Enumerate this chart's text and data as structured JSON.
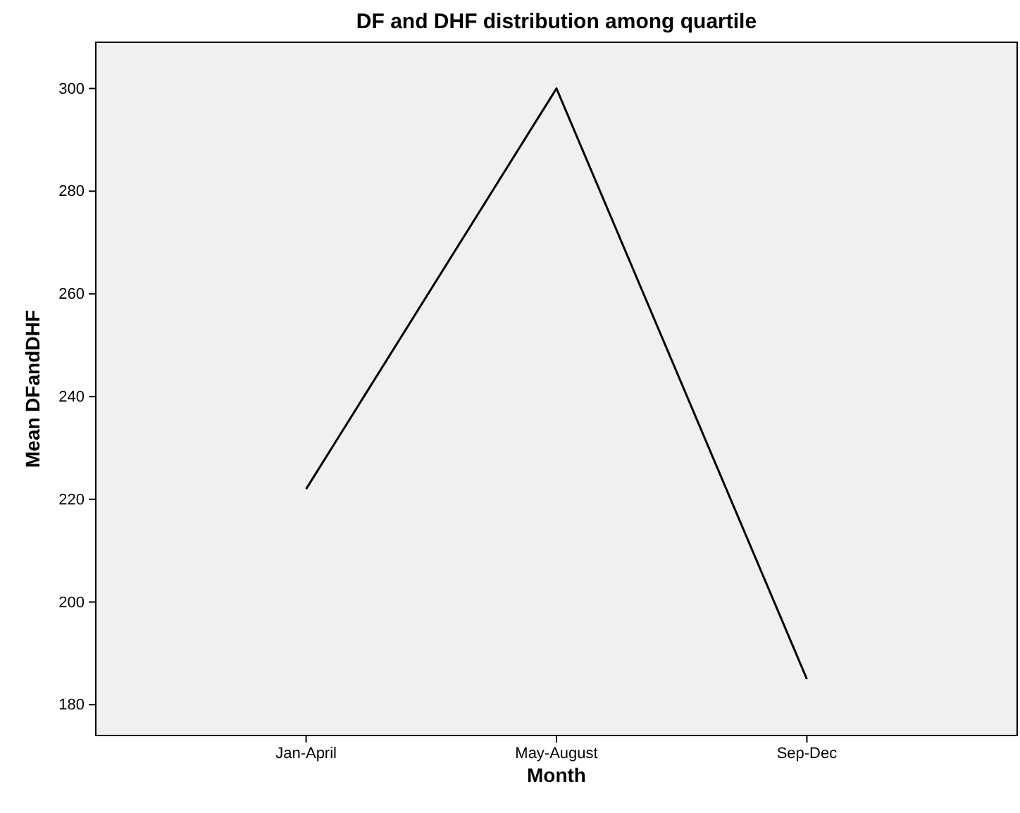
{
  "chart_data": {
    "type": "line",
    "title": "DF and DHF distribution among quartile",
    "xlabel": "Month",
    "ylabel": "Mean DFandDHF",
    "categories": [
      "Jan-April",
      "May-August",
      "Sep-Dec"
    ],
    "series": [
      {
        "color": "#000000",
        "values": [
          222,
          300,
          185
        ]
      }
    ],
    "ylim": [
      174,
      309
    ],
    "yticks": [
      180,
      200,
      220,
      240,
      260,
      280,
      300
    ],
    "grid": false,
    "marker": "none",
    "line_style": "solid"
  }
}
